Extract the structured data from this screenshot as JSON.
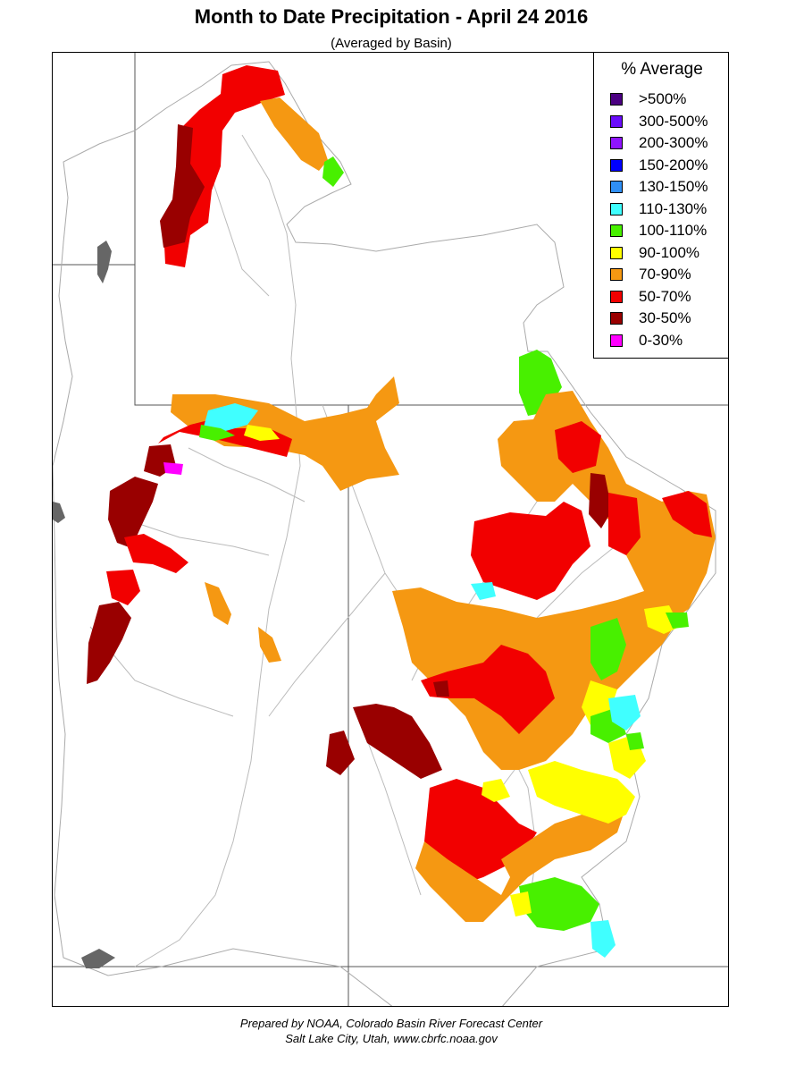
{
  "title": "Month to Date Precipitation - April 24 2016",
  "subtitle": "(Averaged by Basin)",
  "legend": {
    "title": "% Average",
    "items": [
      {
        "label": ">500%",
        "color": "#4b0082"
      },
      {
        "label": "300-500%",
        "color": "#6a0dfa"
      },
      {
        "label": "200-300%",
        "color": "#8f14ff"
      },
      {
        "label": "150-200%",
        "color": "#0000ff"
      },
      {
        "label": "130-150%",
        "color": "#2f8ff5"
      },
      {
        "label": "110-130%",
        "color": "#40ffff"
      },
      {
        "label": "100-110%",
        "color": "#48f000"
      },
      {
        "label": "90-100%",
        "color": "#ffff00"
      },
      {
        "label": "70-90%",
        "color": "#f59812"
      },
      {
        "label": "50-70%",
        "color": "#f20000"
      },
      {
        "label": "30-50%",
        "color": "#990000"
      },
      {
        "label": "0-30%",
        "color": "#ff00ff"
      }
    ]
  },
  "credit": {
    "line1": "Prepared by NOAA, Colorado Basin River Forecast Center",
    "line2": "Salt Lake City, Utah, www.cbrfc.noaa.gov"
  }
}
